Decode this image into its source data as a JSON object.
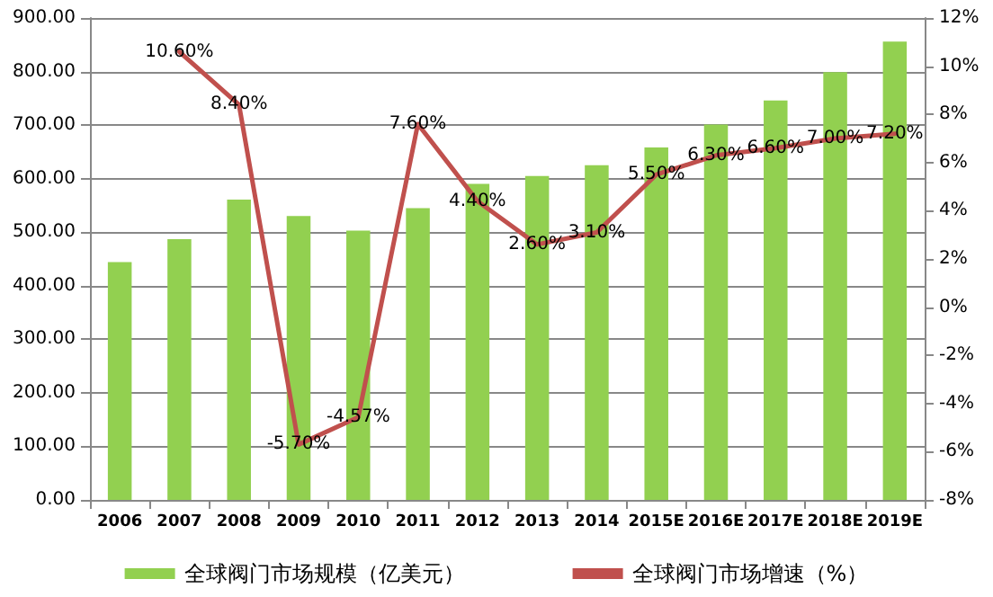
{
  "chart_data": {
    "type": "bar",
    "categories": [
      "2006",
      "2007",
      "2008",
      "2009",
      "2010",
      "2011",
      "2012",
      "2013",
      "2014",
      "2015E",
      "2016E",
      "2017E",
      "2018E",
      "2019E"
    ],
    "series": [
      {
        "name": "全球阀门市场规模（亿美元）",
        "color": "#92d050",
        "values": [
          444,
          487,
          561,
          530,
          503,
          545,
          590,
          605,
          625,
          658,
          701,
          746,
          799,
          856
        ]
      },
      {
        "name": "全球阀门市场增速（%）",
        "type": "line",
        "axis": "y2",
        "color": "#c0504d",
        "values": [
          null,
          10.6,
          8.4,
          -5.7,
          -4.57,
          7.6,
          4.4,
          2.6,
          3.1,
          5.5,
          6.3,
          6.6,
          7.0,
          7.2
        ],
        "value_labels": [
          null,
          "10.60%",
          "8.40%",
          "-5.70%",
          "-4.57%",
          "7.60%",
          "4.40%",
          "2.60%",
          "3.10%",
          "5.50%",
          "6.30%",
          "6.60%",
          "7.00%",
          "7.20%"
        ]
      }
    ],
    "ylim": [
      0,
      900
    ],
    "yticks": [
      {
        "value": 0,
        "label": "0.00"
      },
      {
        "value": 100,
        "label": "100.00"
      },
      {
        "value": 200,
        "label": "200.00"
      },
      {
        "value": 300,
        "label": "300.00"
      },
      {
        "value": 400,
        "label": "400.00"
      },
      {
        "value": 500,
        "label": "500.00"
      },
      {
        "value": 600,
        "label": "600.00"
      },
      {
        "value": 700,
        "label": "700.00"
      },
      {
        "value": 800,
        "label": "800.00"
      },
      {
        "value": 900,
        "label": "900.00"
      }
    ],
    "y2lim": [
      -8,
      12
    ],
    "y2ticks": [
      {
        "value": -8,
        "label": "-8%"
      },
      {
        "value": -6,
        "label": "-6%"
      },
      {
        "value": -4,
        "label": "-4%"
      },
      {
        "value": -2,
        "label": "-2%"
      },
      {
        "value": 0,
        "label": "0%"
      },
      {
        "value": 2,
        "label": "2%"
      },
      {
        "value": 4,
        "label": "4%"
      },
      {
        "value": 6,
        "label": "6%"
      },
      {
        "value": 8,
        "label": "8%"
      },
      {
        "value": 10,
        "label": "10%"
      },
      {
        "value": 12,
        "label": "12%"
      }
    ],
    "grid": "y",
    "legend": "bottom",
    "marker": "none",
    "line_style": "solid"
  }
}
